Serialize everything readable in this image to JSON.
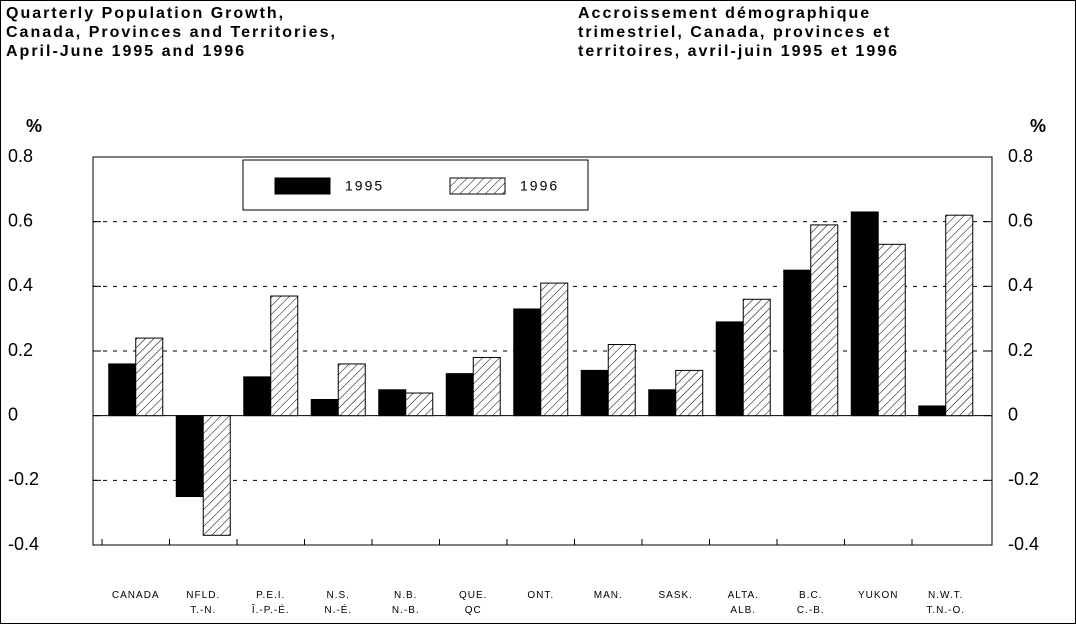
{
  "chart_data": {
    "type": "bar",
    "title": "Quarterly Population Growth,\nCanada, Provinces and Territories,\nApril-June 1995 and 1996",
    "subtitle": "Accroissement démographique\ntrimestriel, Canada, provinces et\nterritoires, avril-juin 1995 et 1996",
    "ylabel": "%",
    "y2label": "%",
    "categories": [
      "CANADA",
      "NFLD.\nT.-N.",
      "P.E.I.\nÎ.-P.-É.",
      "N.S.\nN.-É.",
      "N.B.\nN.-B.",
      "QUE.\nQC",
      "ONT.",
      "MAN.",
      "SASK.",
      "ALTA.\nALB.",
      "B.C.\nC.-B.",
      "YUKON",
      "N.W.T.\nT.N.-O."
    ],
    "series": [
      {
        "name": "1995",
        "color": "#000000",
        "values": [
          0.16,
          -0.25,
          0.12,
          0.05,
          0.08,
          0.13,
          0.33,
          0.14,
          0.08,
          0.29,
          0.45,
          0.63,
          0.03
        ]
      },
      {
        "name": "1996",
        "color": "#000000",
        "hatch": true,
        "values": [
          0.24,
          -0.37,
          0.37,
          0.16,
          0.07,
          0.18,
          0.41,
          0.22,
          0.14,
          0.36,
          0.59,
          0.53,
          0.62
        ]
      }
    ],
    "ylim": [
      -0.4,
      0.8
    ],
    "yticks": [
      0.8,
      0.6,
      0.4,
      0.2,
      0,
      -0.2,
      -0.4
    ],
    "y2lim": [
      -0.4,
      0.8
    ],
    "y2ticks": [
      0.8,
      0.6,
      0.4,
      0.2,
      0,
      -0.2,
      -0.4
    ],
    "grid": true
  }
}
